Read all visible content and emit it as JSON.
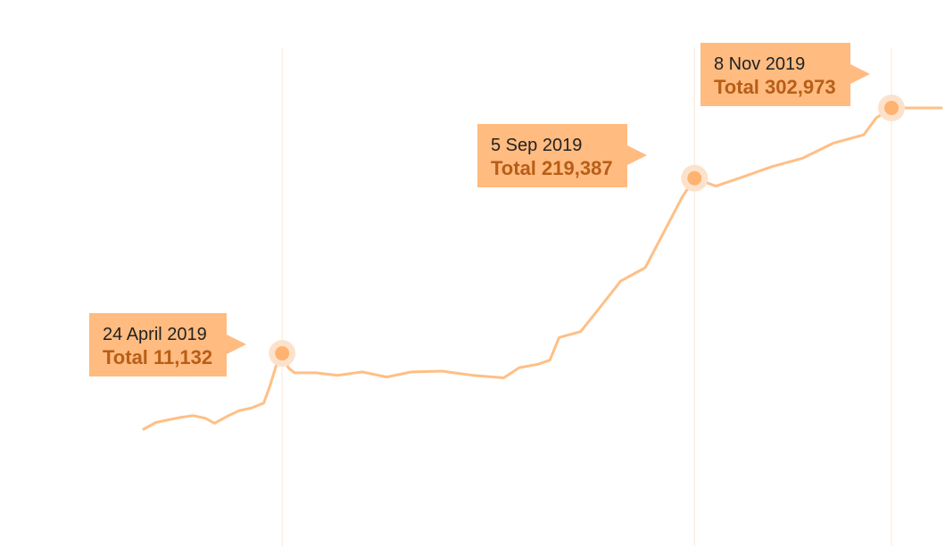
{
  "colors": {
    "line": "#ffbf86",
    "marker": "#ffb370",
    "marker_halo": "#fde2cb",
    "callout_bg": "#ffbb80",
    "total_text": "#b85e18",
    "guide": "#fbe7d8"
  },
  "chart_data": {
    "type": "line",
    "title": "",
    "xlabel": "",
    "ylabel": "",
    "x_range": [
      "2019-03-10",
      "2019-12-01"
    ],
    "ylim": [
      -100000,
      340000
    ],
    "grid": false,
    "series": [
      {
        "points": [
          [
            "2019-03-10",
            -79000
          ],
          [
            "2019-03-14",
            -71000
          ],
          [
            "2019-03-18",
            -68000
          ],
          [
            "2019-03-22",
            -65000
          ],
          [
            "2019-03-26",
            -63000
          ],
          [
            "2019-03-30",
            -66000
          ],
          [
            "2019-04-02",
            -72000
          ],
          [
            "2019-04-06",
            -64000
          ],
          [
            "2019-04-10",
            -57000
          ],
          [
            "2019-04-14",
            -54000
          ],
          [
            "2019-04-18",
            -48000
          ],
          [
            "2019-04-20",
            -28000
          ],
          [
            "2019-04-22",
            -4000
          ],
          [
            "2019-04-24",
            11132
          ],
          [
            "2019-04-26",
            -6000
          ],
          [
            "2019-04-28",
            -12000
          ],
          [
            "2019-05-05",
            -12000
          ],
          [
            "2019-05-12",
            -15000
          ],
          [
            "2019-05-20",
            -11000
          ],
          [
            "2019-05-28",
            -17000
          ],
          [
            "2019-06-05",
            -11000
          ],
          [
            "2019-06-15",
            -10000
          ],
          [
            "2019-06-25",
            -15000
          ],
          [
            "2019-07-05",
            -18000
          ],
          [
            "2019-07-10",
            -6000
          ],
          [
            "2019-07-16",
            -2000
          ],
          [
            "2019-07-20",
            3000
          ],
          [
            "2019-07-23",
            30000
          ],
          [
            "2019-07-30",
            37000
          ],
          [
            "2019-08-06",
            69000
          ],
          [
            "2019-08-12",
            97000
          ],
          [
            "2019-08-20",
            113000
          ],
          [
            "2019-08-28",
            169000
          ],
          [
            "2019-09-01",
            197000
          ],
          [
            "2019-09-05",
            219387
          ],
          [
            "2019-09-12",
            210000
          ],
          [
            "2019-09-20",
            220000
          ],
          [
            "2019-09-30",
            233000
          ],
          [
            "2019-10-10",
            243000
          ],
          [
            "2019-10-20",
            261000
          ],
          [
            "2019-10-30",
            271000
          ],
          [
            "2019-11-03",
            291000
          ],
          [
            "2019-11-08",
            302973
          ],
          [
            "2019-12-01",
            303000
          ]
        ]
      }
    ],
    "highlights": [
      {
        "x": "2019-04-24",
        "y": 11132,
        "date_label": "24 April 2019",
        "total_label": "Total 11,132"
      },
      {
        "x": "2019-09-05",
        "y": 219387,
        "date_label": "5 Sep 2019",
        "total_label": "Total 219,387"
      },
      {
        "x": "2019-11-08",
        "y": 302973,
        "date_label": "8 Nov 2019",
        "total_label": "Total 302,973"
      }
    ]
  }
}
